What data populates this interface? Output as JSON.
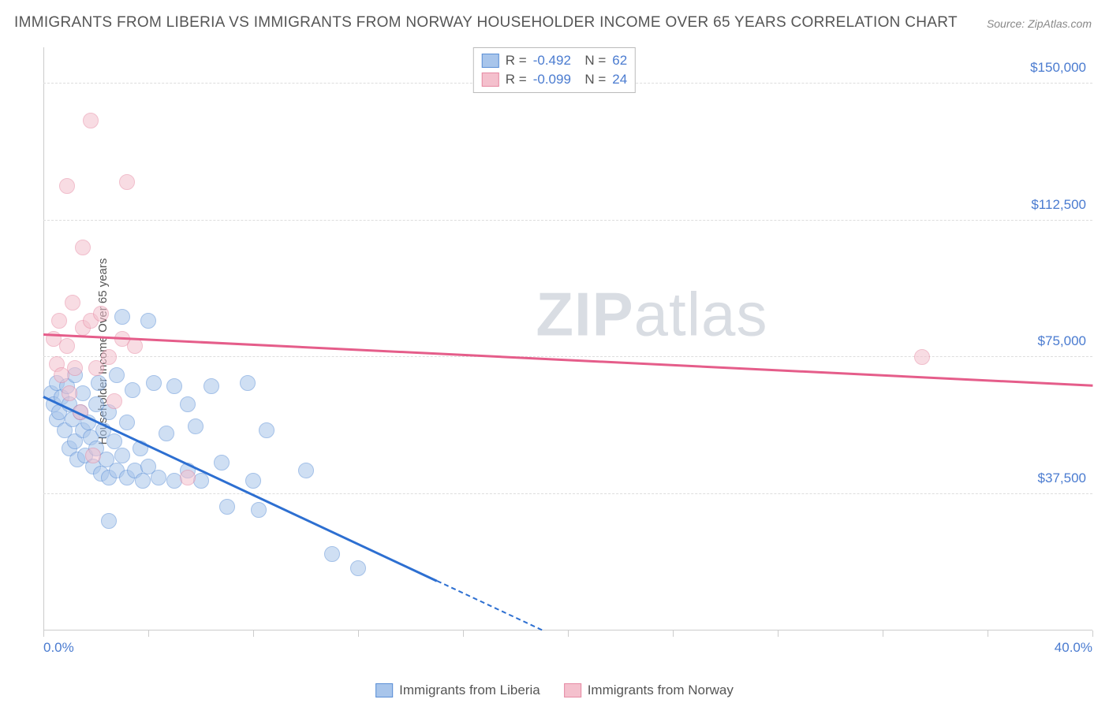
{
  "title": "IMMIGRANTS FROM LIBERIA VS IMMIGRANTS FROM NORWAY HOUSEHOLDER INCOME OVER 65 YEARS CORRELATION CHART",
  "source": "Source: ZipAtlas.com",
  "watermark_bold": "ZIP",
  "watermark_light": "atlas",
  "ylabel": "Householder Income Over 65 years",
  "chart": {
    "type": "scatter",
    "xlim": [
      0,
      40
    ],
    "ylim": [
      0,
      160000
    ],
    "x_tick_step": 4,
    "y_grid": [
      37500,
      75000,
      112500,
      150000
    ],
    "y_tick_labels": [
      "$37,500",
      "$75,000",
      "$112,500",
      "$150,000"
    ],
    "x_min_label": "0.0%",
    "x_max_label": "40.0%",
    "background": "#ffffff",
    "grid_color": "#dddddd",
    "axis_color": "#cccccc",
    "marker_radius": 10,
    "marker_opacity": 0.55,
    "series": [
      {
        "name": "Immigrants from Liberia",
        "color_fill": "#a8c5eb",
        "color_stroke": "#5b8fd6",
        "trend_color": "#2d6fd1",
        "R": "-0.492",
        "N": "62",
        "trend": {
          "x1": 0,
          "y1": 64000,
          "x2": 19,
          "y2": 0,
          "dash_after_x": 15
        },
        "points": [
          [
            0.3,
            65000
          ],
          [
            0.4,
            62000
          ],
          [
            0.5,
            68000
          ],
          [
            0.5,
            58000
          ],
          [
            0.6,
            60000
          ],
          [
            0.7,
            64000
          ],
          [
            0.8,
            55000
          ],
          [
            0.9,
            67000
          ],
          [
            1.0,
            62000
          ],
          [
            1.0,
            50000
          ],
          [
            1.1,
            58000
          ],
          [
            1.2,
            52000
          ],
          [
            1.2,
            70000
          ],
          [
            1.3,
            47000
          ],
          [
            1.4,
            60000
          ],
          [
            1.5,
            55000
          ],
          [
            1.5,
            65000
          ],
          [
            1.6,
            48000
          ],
          [
            1.7,
            57000
          ],
          [
            1.8,
            53000
          ],
          [
            1.9,
            45000
          ],
          [
            2.0,
            62000
          ],
          [
            2.0,
            50000
          ],
          [
            2.1,
            68000
          ],
          [
            2.2,
            43000
          ],
          [
            2.3,
            55000
          ],
          [
            2.4,
            47000
          ],
          [
            2.5,
            60000
          ],
          [
            2.5,
            42000
          ],
          [
            2.7,
            52000
          ],
          [
            2.8,
            44000
          ],
          [
            2.8,
            70000
          ],
          [
            3.0,
            86000
          ],
          [
            3.0,
            48000
          ],
          [
            3.2,
            57000
          ],
          [
            3.2,
            42000
          ],
          [
            3.4,
            66000
          ],
          [
            3.5,
            44000
          ],
          [
            3.7,
            50000
          ],
          [
            3.8,
            41000
          ],
          [
            4.0,
            85000
          ],
          [
            4.0,
            45000
          ],
          [
            4.2,
            68000
          ],
          [
            4.4,
            42000
          ],
          [
            4.7,
            54000
          ],
          [
            5.0,
            67000
          ],
          [
            5.0,
            41000
          ],
          [
            5.5,
            44000
          ],
          [
            5.5,
            62000
          ],
          [
            5.8,
            56000
          ],
          [
            6.0,
            41000
          ],
          [
            6.4,
            67000
          ],
          [
            6.8,
            46000
          ],
          [
            7.0,
            34000
          ],
          [
            7.8,
            68000
          ],
          [
            8.0,
            41000
          ],
          [
            8.2,
            33000
          ],
          [
            8.5,
            55000
          ],
          [
            10.0,
            44000
          ],
          [
            11.0,
            21000
          ],
          [
            12.0,
            17000
          ],
          [
            2.5,
            30000
          ]
        ]
      },
      {
        "name": "Immigrants from Norway",
        "color_fill": "#f4c0cd",
        "color_stroke": "#e68aa3",
        "trend_color": "#e55d8a",
        "R": "-0.099",
        "N": "24",
        "trend": {
          "x1": 0,
          "y1": 81000,
          "x2": 40,
          "y2": 67000,
          "dash_after_x": 40
        },
        "points": [
          [
            0.4,
            80000
          ],
          [
            0.5,
            73000
          ],
          [
            0.6,
            85000
          ],
          [
            0.7,
            70000
          ],
          [
            0.9,
            78000
          ],
          [
            1.0,
            65000
          ],
          [
            1.1,
            90000
          ],
          [
            1.2,
            72000
          ],
          [
            1.4,
            60000
          ],
          [
            1.5,
            83000
          ],
          [
            1.5,
            105000
          ],
          [
            1.8,
            85000
          ],
          [
            1.9,
            48000
          ],
          [
            2.0,
            72000
          ],
          [
            2.2,
            87000
          ],
          [
            2.5,
            75000
          ],
          [
            2.7,
            63000
          ],
          [
            3.0,
            80000
          ],
          [
            3.2,
            123000
          ],
          [
            1.8,
            140000
          ],
          [
            0.9,
            122000
          ],
          [
            3.5,
            78000
          ],
          [
            5.5,
            42000
          ],
          [
            33.5,
            75000
          ]
        ]
      }
    ]
  }
}
